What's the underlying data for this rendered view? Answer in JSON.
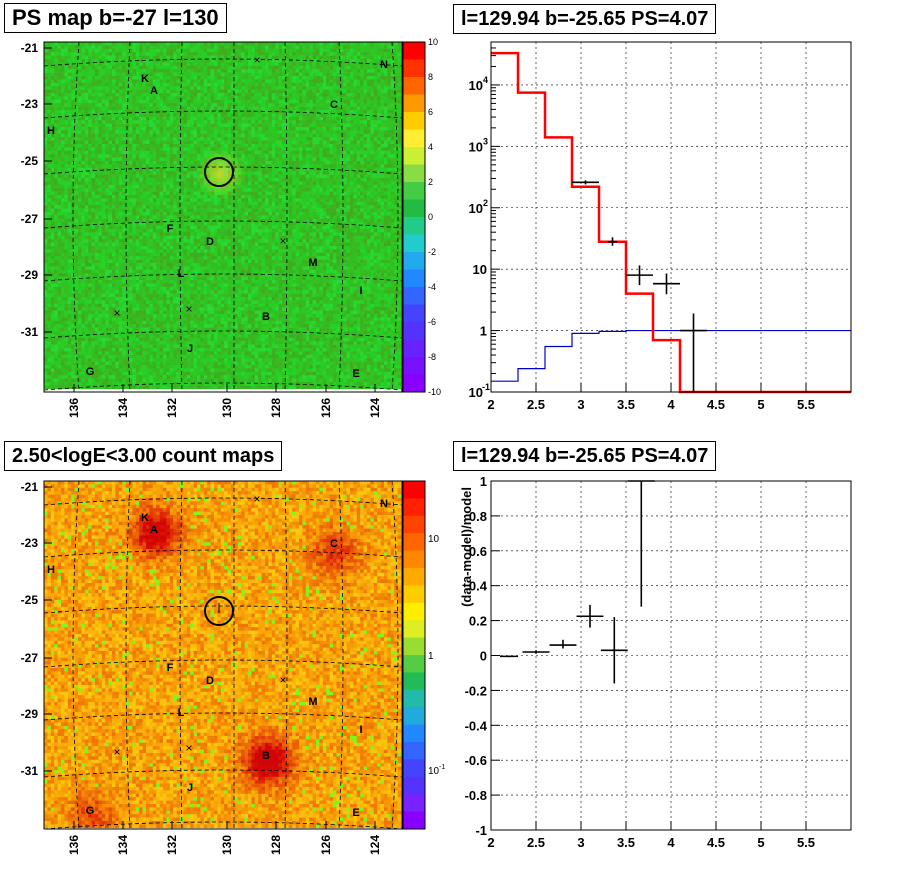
{
  "panels": {
    "ps_map": {
      "title": "PS map b=-27 l=130"
    },
    "spectrum": {
      "title": "l=129.94 b=-25.65 PS=4.07"
    },
    "count_map": {
      "title": "2.50<logE<3.00 count maps"
    },
    "residual": {
      "title": "l=129.94 b=-25.65 PS=4.07"
    }
  },
  "map_axes": {
    "y_ticks": [
      "-21",
      "-23",
      "-25",
      "-27",
      "-29",
      "-31"
    ],
    "x_ticks": [
      "136",
      "134",
      "132",
      "130",
      "128",
      "126",
      "124"
    ]
  },
  "sources": [
    "K",
    "A",
    "N",
    "C",
    "H",
    "F",
    "D",
    "M",
    "L",
    "I",
    "B",
    "J",
    "G",
    "E"
  ],
  "ps_colorbar": {
    "labels": [
      "10",
      "8",
      "6",
      "4",
      "2",
      "0",
      "-2",
      "-4",
      "-6",
      "-8",
      "-10"
    ]
  },
  "count_colorbar": {
    "labels": [
      "10",
      "1",
      "10",
      "-1"
    ]
  },
  "colors": {
    "model": "#ff0000",
    "background": "#0000cc",
    "data": "#000000",
    "map_green": "#2ecc40",
    "map_orange": "#ff8c1a"
  },
  "chart_data": [
    {
      "type": "heatmap",
      "title": "PS map b=-27 l=130",
      "xlim": [
        137,
        123
      ],
      "ylim": [
        -33,
        -20.8
      ],
      "colorbar_range": [
        -10,
        10
      ],
      "circle_center": {
        "l": 129.94,
        "b": -25.65
      }
    },
    {
      "type": "line",
      "title": "l=129.94 b=-25.65 PS=4.07",
      "xlim": [
        2,
        6
      ],
      "ylim": [
        0.1,
        50000
      ],
      "yscale": "log",
      "x_ticks": [
        "2",
        "2.5",
        "3",
        "3.5",
        "4",
        "4.5",
        "5",
        "5.5"
      ],
      "y_ticks": [
        "10^-1",
        "1",
        "10",
        "10^2",
        "10^3",
        "10^4"
      ],
      "series": [
        {
          "edges": [
            2.0,
            2.3,
            2.6,
            2.9,
            3.2,
            3.5,
            3.8,
            4.1,
            6.0
          ],
          "values": [
            33000,
            7500,
            1400,
            220,
            28,
            4,
            0.7,
            0.1
          ]
        },
        {
          "edges": [
            2.0,
            2.3,
            2.6,
            2.9,
            3.2,
            3.5,
            6.0
          ],
          "values": [
            0.15,
            0.24,
            0.55,
            0.9,
            0.97,
            1.0
          ]
        },
        {
          "points": [
            {
              "x": 3.05,
              "y": 260,
              "xerr": 0.15,
              "ylo": 240,
              "yhi": 280
            },
            {
              "x": 3.35,
              "y": 28,
              "xerr": 0.05,
              "ylo": 24,
              "yhi": 33
            },
            {
              "x": 3.65,
              "y": 8,
              "xerr": 0.15,
              "ylo": 5.5,
              "yhi": 11.5
            },
            {
              "x": 3.95,
              "y": 5.8,
              "xerr": 0.15,
              "ylo": 3.9,
              "yhi": 8.5
            },
            {
              "x": 4.25,
              "y": 1.0,
              "xerr": 0.15,
              "ylo": 0.1,
              "yhi": 1.9
            }
          ]
        }
      ]
    },
    {
      "type": "heatmap",
      "title": "2.50<logE<3.00 count maps",
      "xlim": [
        137,
        123
      ],
      "ylim": [
        -33,
        -20.8
      ],
      "colorbar_scale": "log"
    },
    {
      "type": "scatter",
      "title": "l=129.94 b=-25.65 PS=4.07",
      "ylabel": "(data-model)/model",
      "xlim": [
        2,
        6
      ],
      "ylim": [
        -1,
        1
      ],
      "x_ticks": [
        "2",
        "2.5",
        "3",
        "3.5",
        "4",
        "4.5",
        "5",
        "5.5"
      ],
      "y_ticks": [
        "-1",
        "-0.8",
        "-0.6",
        "-0.4",
        "-0.2",
        "0",
        "0.2",
        "0.4",
        "0.6",
        "0.8",
        "1"
      ],
      "points": [
        {
          "x": 2.2,
          "y": -0.005,
          "xerr": 0.1,
          "ylo": -0.01,
          "yhi": 0.0
        },
        {
          "x": 2.5,
          "y": 0.02,
          "xerr": 0.15,
          "ylo": 0.01,
          "yhi": 0.03
        },
        {
          "x": 2.8,
          "y": 0.06,
          "xerr": 0.15,
          "ylo": 0.04,
          "yhi": 0.09
        },
        {
          "x": 3.1,
          "y": 0.225,
          "xerr": 0.15,
          "ylo": 0.16,
          "yhi": 0.29
        },
        {
          "x": 3.37,
          "y": 0.03,
          "xerr": 0.15,
          "ylo": -0.16,
          "yhi": 0.22
        },
        {
          "x": 3.67,
          "y": 1.0,
          "xerr": 0.15,
          "ylo": 0.28,
          "yhi": 1.0
        }
      ]
    }
  ]
}
